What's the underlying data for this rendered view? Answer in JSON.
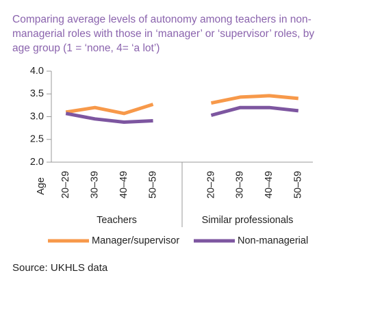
{
  "chart_data": {
    "type": "line",
    "title": "Comparing average levels of autonomy among teachers in non-managerial roles with those in ‘manager’ or ‘supervisor’ roles, by age group (1 = ‘none, 4= ‘a lot’)",
    "x_label": "Age",
    "group_labels": [
      "Teachers",
      "Similar professionals"
    ],
    "categories": [
      "20–29",
      "30–39",
      "40–49",
      "50–59",
      null,
      "20–29",
      "30–39",
      "40–49",
      "50–59"
    ],
    "series": [
      {
        "name": "Manager/supervisor",
        "color": "#f7994a",
        "values": [
          3.1,
          3.2,
          3.07,
          3.27,
          null,
          3.3,
          3.43,
          3.46,
          3.4
        ]
      },
      {
        "name": "Non-managerial",
        "color": "#7d56a0",
        "values": [
          3.07,
          2.95,
          2.88,
          2.91,
          null,
          3.03,
          3.2,
          3.2,
          3.13
        ]
      }
    ],
    "ylim": [
      2,
      4
    ],
    "yticks": [
      {
        "value": 2,
        "label": "2.0"
      },
      2.5,
      {
        "value": 3,
        "label": "3.0"
      },
      3.5,
      {
        "value": 4,
        "label": "4.0"
      }
    ],
    "legend": "bottom",
    "source": "Source: UKHLS data"
  }
}
